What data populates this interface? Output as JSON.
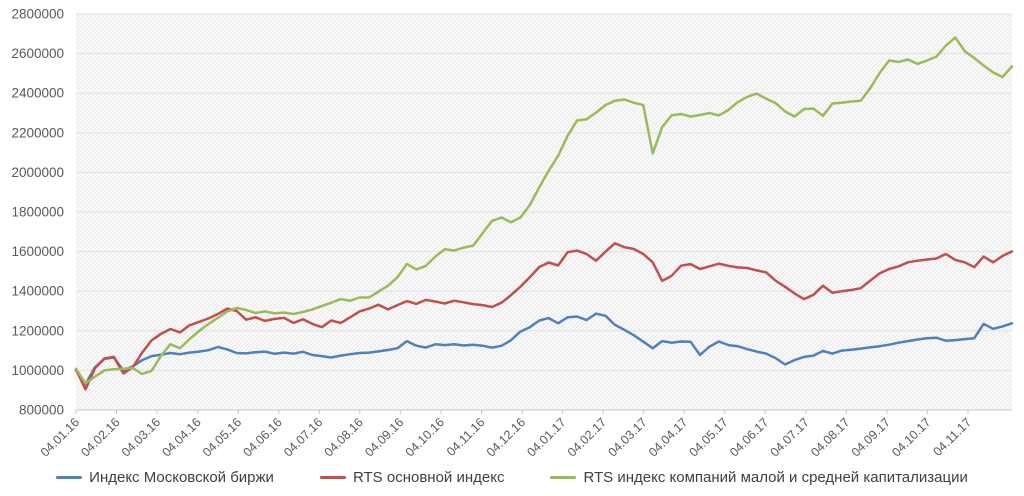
{
  "chart_data": {
    "type": "line",
    "title": "",
    "grid": "horizontal",
    "plot_background": "diagonal-hatch",
    "legend_position": "bottom",
    "y_axis": {
      "min": 800000,
      "max": 2800000,
      "step": 200000,
      "tick_labels": [
        "2800000",
        "2600000",
        "2400000",
        "2200000",
        "2000000",
        "1800000",
        "1600000",
        "1400000",
        "1200000",
        "1000000",
        "800000"
      ]
    },
    "x_axis": {
      "tick_labels": [
        "04.01.16",
        "04.02.16",
        "04.03.16",
        "04.04.16",
        "04.05.16",
        "04.06.16",
        "04.07.16",
        "04.08.16",
        "04.09.16",
        "04.10.16",
        "04.11.16",
        "04.12.16",
        "04.01.17",
        "04.02.17",
        "04.03.17",
        "04.04.17",
        "04.05.17",
        "04.06.17",
        "04.07.17",
        "04.08.17",
        "04.09.17",
        "04.10.17",
        "04.11.17"
      ],
      "ticks_span_fraction": 0.953
    },
    "series": [
      {
        "name": "Индекс Московской биржи",
        "color": "#4F81BD",
        "values": [
          1000000,
          930000,
          1015000,
          1058000,
          1065000,
          1000000,
          1020000,
          1052000,
          1072000,
          1080000,
          1088000,
          1082000,
          1090000,
          1095000,
          1102000,
          1118000,
          1106000,
          1088000,
          1086000,
          1092000,
          1095000,
          1084000,
          1090000,
          1085000,
          1094000,
          1078000,
          1072000,
          1065000,
          1075000,
          1082000,
          1088000,
          1090000,
          1096000,
          1103000,
          1112000,
          1148000,
          1125000,
          1115000,
          1132000,
          1128000,
          1132000,
          1126000,
          1130000,
          1125000,
          1115000,
          1124000,
          1152000,
          1196000,
          1218000,
          1252000,
          1264000,
          1238000,
          1268000,
          1272000,
          1254000,
          1287000,
          1276000,
          1230000,
          1205000,
          1178000,
          1145000,
          1112000,
          1148000,
          1140000,
          1146000,
          1145000,
          1078000,
          1120000,
          1146000,
          1128000,
          1122000,
          1107000,
          1095000,
          1085000,
          1062000,
          1030000,
          1052000,
          1068000,
          1075000,
          1098000,
          1085000,
          1100000,
          1104000,
          1110000,
          1116000,
          1122000,
          1130000,
          1140000,
          1148000,
          1156000,
          1162000,
          1165000,
          1150000,
          1153000,
          1158000,
          1162000,
          1235000,
          1210000,
          1222000,
          1238000
        ]
      },
      {
        "name": "RTS основной индекс",
        "color": "#C0504D",
        "values": [
          1005000,
          905000,
          1010000,
          1060000,
          1068000,
          985000,
          1015000,
          1090000,
          1152000,
          1185000,
          1209000,
          1192000,
          1228000,
          1245000,
          1262000,
          1285000,
          1312000,
          1300000,
          1256000,
          1268000,
          1250000,
          1260000,
          1265000,
          1240000,
          1258000,
          1235000,
          1218000,
          1252000,
          1240000,
          1268000,
          1298000,
          1312000,
          1332000,
          1308000,
          1330000,
          1350000,
          1336000,
          1356000,
          1348000,
          1338000,
          1352000,
          1344000,
          1335000,
          1330000,
          1320000,
          1342000,
          1380000,
          1422000,
          1470000,
          1522000,
          1545000,
          1530000,
          1597000,
          1605000,
          1588000,
          1554000,
          1600000,
          1642000,
          1622000,
          1613000,
          1588000,
          1546000,
          1452000,
          1478000,
          1529000,
          1537000,
          1512000,
          1526000,
          1539000,
          1528000,
          1520000,
          1517000,
          1505000,
          1495000,
          1453000,
          1422000,
          1389000,
          1360000,
          1382000,
          1428000,
          1392000,
          1400000,
          1406000,
          1415000,
          1453000,
          1490000,
          1512000,
          1525000,
          1546000,
          1554000,
          1560000,
          1565000,
          1588000,
          1558000,
          1546000,
          1521000,
          1575000,
          1546000,
          1578000,
          1601000
        ]
      },
      {
        "name": "RTS индекс компаний малой и средней капитализации",
        "color": "#9BBB59",
        "values": [
          1008000,
          935000,
          968000,
          1000000,
          1006000,
          1008000,
          1012000,
          982000,
          998000,
          1075000,
          1132000,
          1112000,
          1158000,
          1198000,
          1235000,
          1265000,
          1298000,
          1315000,
          1305000,
          1290000,
          1298000,
          1288000,
          1292000,
          1285000,
          1295000,
          1308000,
          1325000,
          1342000,
          1360000,
          1352000,
          1368000,
          1368000,
          1398000,
          1428000,
          1470000,
          1538000,
          1510000,
          1528000,
          1575000,
          1612000,
          1605000,
          1620000,
          1630000,
          1692000,
          1755000,
          1772000,
          1748000,
          1772000,
          1835000,
          1925000,
          2008000,
          2085000,
          2185000,
          2262000,
          2268000,
          2302000,
          2340000,
          2362000,
          2368000,
          2352000,
          2340000,
          2096000,
          2230000,
          2288000,
          2295000,
          2282000,
          2290000,
          2300000,
          2288000,
          2315000,
          2355000,
          2382000,
          2398000,
          2372000,
          2350000,
          2308000,
          2282000,
          2320000,
          2322000,
          2286000,
          2348000,
          2352000,
          2358000,
          2362000,
          2425000,
          2502000,
          2565000,
          2558000,
          2570000,
          2548000,
          2565000,
          2585000,
          2640000,
          2682000,
          2612000,
          2578000,
          2540000,
          2505000,
          2482000,
          2535000
        ]
      }
    ]
  },
  "colors": {
    "plot_bg": "#fbfbfb",
    "hatch": "#e9e9e9",
    "gridline": "#e2e2e2",
    "axis_line": "#c6c6c6",
    "tick_mark": "#c6c6c6",
    "axis_text": "#595959",
    "legend_text": "#404040"
  }
}
